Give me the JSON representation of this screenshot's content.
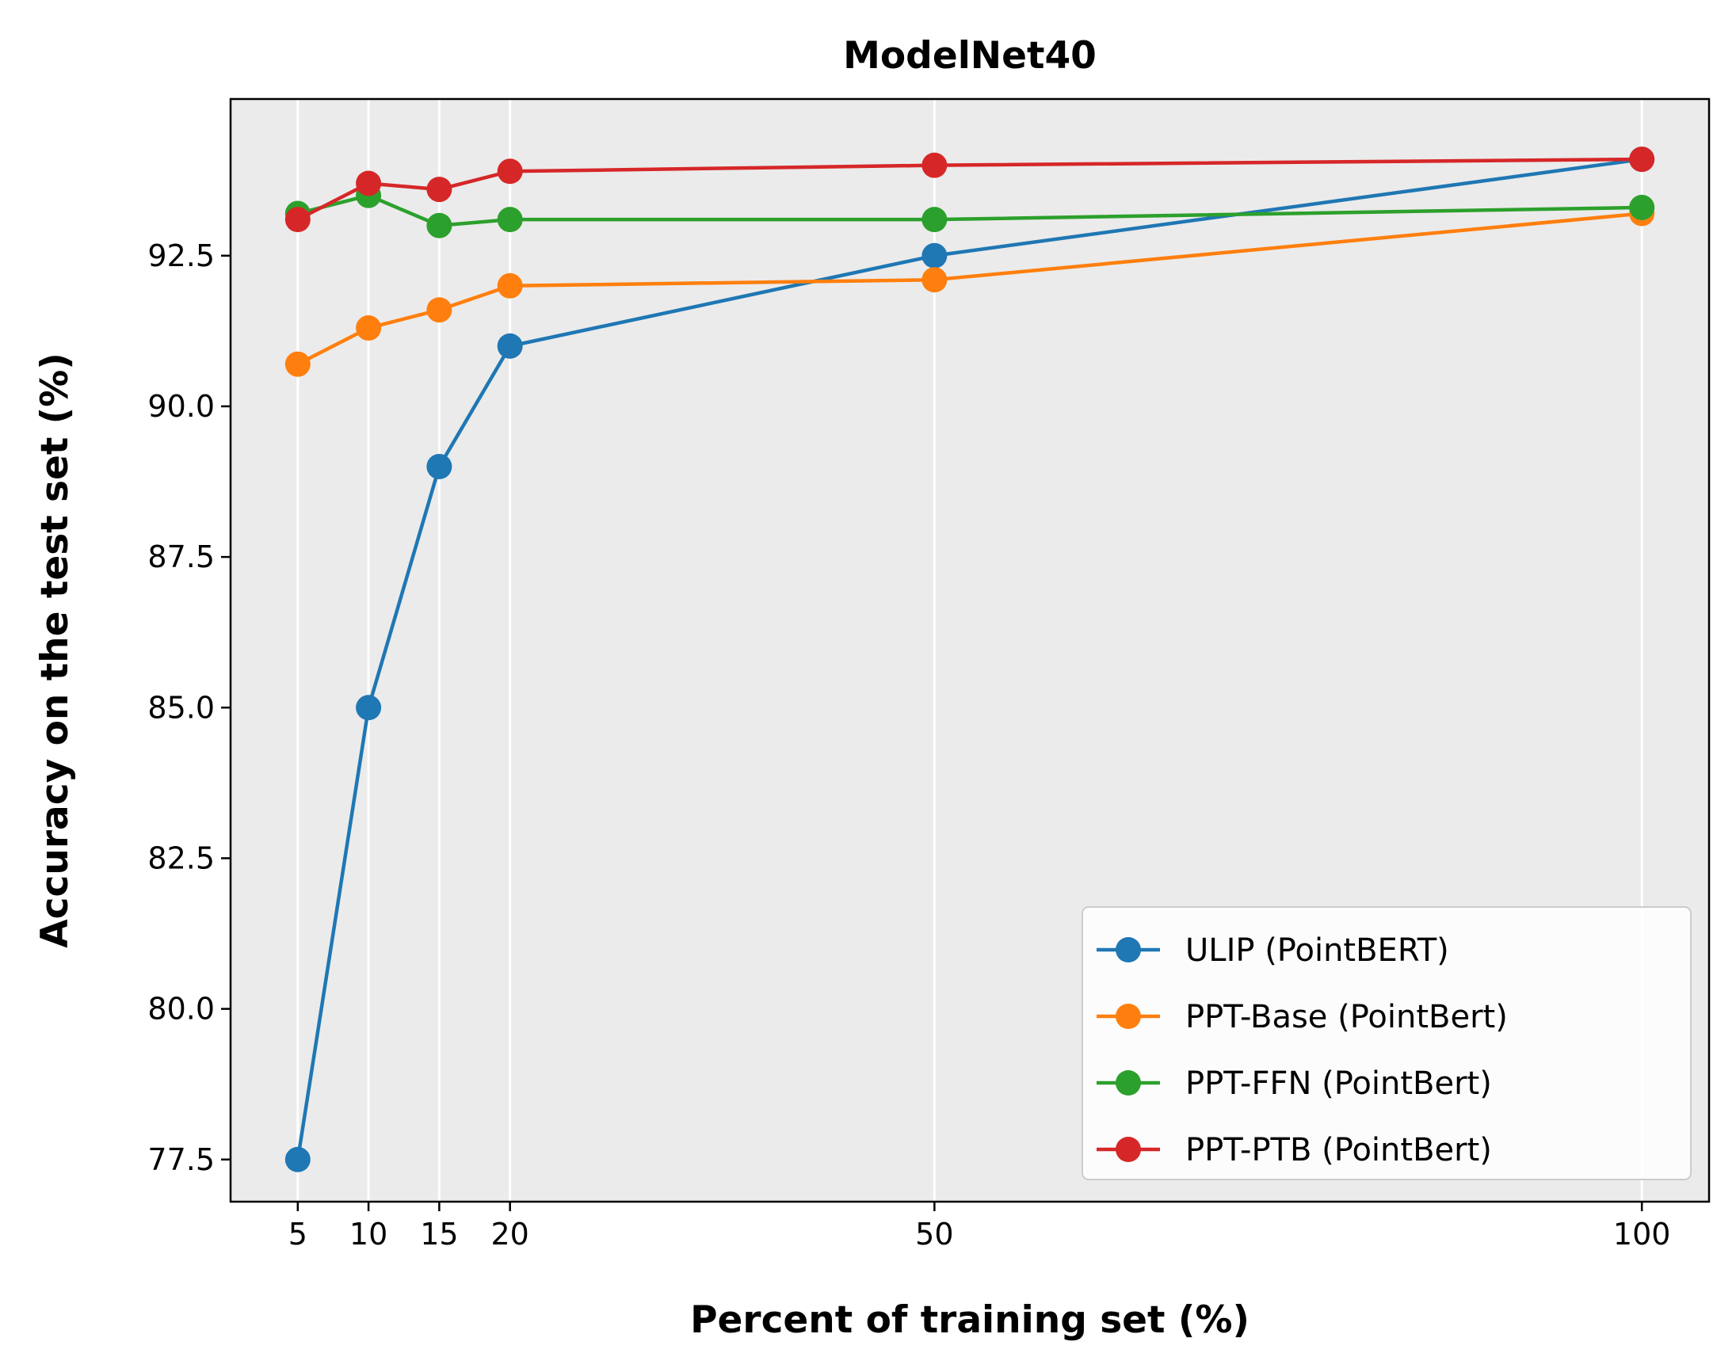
{
  "chart_data": {
    "type": "line",
    "title": "ModelNet40",
    "xlabel": "Percent of training set (%)",
    "ylabel": "Accuracy on the test set (%)",
    "x": [
      5,
      10,
      15,
      20,
      50,
      100
    ],
    "xticks": [
      5,
      10,
      15,
      20,
      50,
      100
    ],
    "xtick_labels": [
      "5",
      "10",
      "15",
      "20",
      "50",
      "100"
    ],
    "yticks": [
      77.5,
      80.0,
      82.5,
      85.0,
      87.5,
      90.0,
      92.5
    ],
    "ytick_labels": [
      "77.5",
      "80.0",
      "82.5",
      "85.0",
      "87.5",
      "90.0",
      "92.5"
    ],
    "xlim": [
      0.25,
      104.75
    ],
    "ylim": [
      76.8,
      95.1
    ],
    "grid": "vertical at x ticks",
    "legend_position": "lower right",
    "background": "#ebebeb",
    "series": [
      {
        "name": "ULIP (PointBERT)",
        "color": "#1f77b4",
        "values": [
          77.5,
          85.0,
          89.0,
          91.0,
          92.5,
          94.1
        ]
      },
      {
        "name": "PPT-Base (PointBert)",
        "color": "#ff7f0e",
        "values": [
          90.7,
          91.3,
          91.6,
          92.0,
          92.1,
          93.2
        ]
      },
      {
        "name": "PPT-FFN (PointBert)",
        "color": "#2ca02c",
        "values": [
          93.2,
          93.5,
          93.0,
          93.1,
          93.1,
          93.3
        ]
      },
      {
        "name": "PPT-PTB (PointBert)",
        "color": "#d62728",
        "values": [
          93.1,
          93.7,
          93.6,
          93.9,
          94.0,
          94.1
        ]
      }
    ]
  }
}
